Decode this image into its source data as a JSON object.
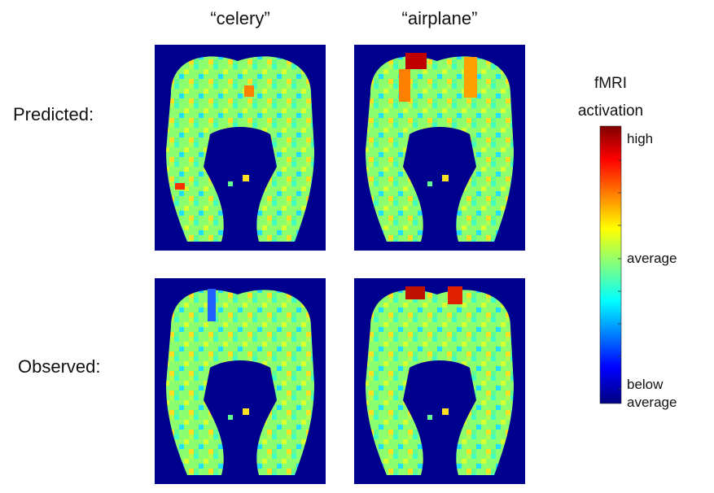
{
  "column_labels": [
    "“celery”",
    "“airplane”"
  ],
  "row_labels": [
    "Predicted:",
    "Observed:"
  ],
  "colorbar": {
    "title": "fMRI\nactivation",
    "labels": [
      "high",
      "average",
      "below\naverage"
    ]
  }
}
